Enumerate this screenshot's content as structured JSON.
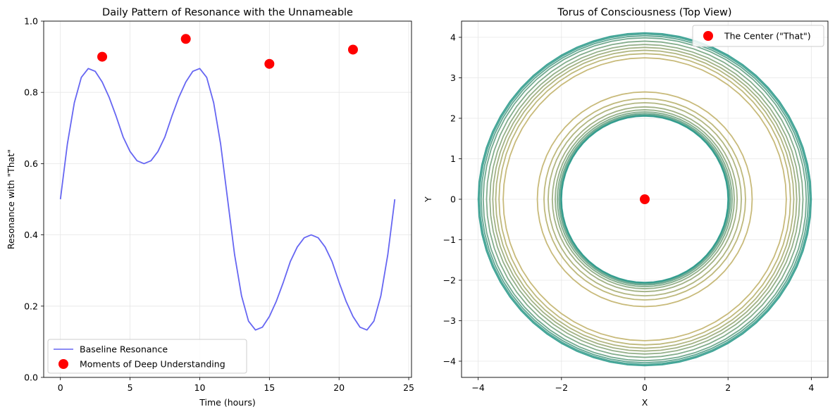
{
  "chart_data": [
    {
      "type": "line",
      "title": "Daily Pattern of Resonance with the Unnameable",
      "xlabel": "Time (hours)",
      "ylabel": "Resonance with \"That\"",
      "xlim": [
        -1.2,
        25.2
      ],
      "ylim": [
        0,
        1
      ],
      "xticks": [
        0,
        5,
        10,
        15,
        20,
        25
      ],
      "yticks": [
        0.0,
        0.2,
        0.4,
        0.6,
        0.8,
        1.0
      ],
      "grid": true,
      "legend_position": "lower-left",
      "series": [
        {
          "name": "Baseline Resonance",
          "kind": "line",
          "color": "#6666f2",
          "x": [
            0,
            0.5,
            1,
            1.5,
            2,
            2.5,
            3,
            3.5,
            4,
            4.5,
            5,
            5.5,
            6,
            6.5,
            7,
            7.5,
            8,
            8.5,
            9,
            9.5,
            10,
            10.5,
            11,
            11.5,
            12,
            12.5,
            13,
            13.5,
            14,
            14.5,
            15,
            15.5,
            16,
            16.5,
            17,
            17.5,
            18,
            18.5,
            19,
            19.5,
            20,
            20.5,
            21,
            21.5,
            22,
            22.5,
            23,
            23.5,
            24
          ],
          "y": [
            0.5,
            0.655,
            0.771,
            0.842,
            0.867,
            0.859,
            0.829,
            0.786,
            0.733,
            0.675,
            0.634,
            0.608,
            0.6,
            0.608,
            0.634,
            0.675,
            0.733,
            0.786,
            0.829,
            0.859,
            0.867,
            0.842,
            0.771,
            0.655,
            0.5,
            0.345,
            0.229,
            0.158,
            0.133,
            0.141,
            0.171,
            0.214,
            0.267,
            0.325,
            0.366,
            0.392,
            0.4,
            0.392,
            0.366,
            0.325,
            0.267,
            0.214,
            0.171,
            0.141,
            0.133,
            0.158,
            0.229,
            0.345,
            0.5
          ]
        },
        {
          "name": "Moments of Deep Understanding",
          "kind": "scatter",
          "color": "#ff0000",
          "x": [
            3,
            9,
            15,
            21
          ],
          "y": [
            0.9,
            0.95,
            0.88,
            0.92
          ]
        }
      ]
    },
    {
      "type": "line",
      "title": "Torus of Consciousness (Top View)",
      "xlabel": "X",
      "ylabel": "Y",
      "xlim": [
        -4.4,
        4.4
      ],
      "ylim": [
        -4.4,
        4.4
      ],
      "xticks": [
        -4,
        -2,
        0,
        2,
        4
      ],
      "yticks": [
        -4,
        -3,
        -2,
        -1,
        0,
        1,
        2,
        3,
        4
      ],
      "grid": true,
      "legend_position": "top-right",
      "rings": {
        "outer_radii": [
          3.4,
          3.5,
          3.58,
          3.65,
          3.72,
          3.8,
          3.88,
          3.93,
          3.97,
          4.0
        ],
        "inner_radii": [
          2.58,
          2.42,
          2.32,
          2.22,
          2.15,
          2.1,
          2.06,
          2.03,
          2.01,
          2.0
        ],
        "colors": [
          "#c2b26c",
          "#b8b16e",
          "#a9ae73",
          "#98aa78",
          "#88a77c",
          "#76a480",
          "#64a184",
          "#509f88",
          "#3c9d8c",
          "#2a9a8c"
        ]
      },
      "series": [
        {
          "name": "The Center (\"That\")",
          "kind": "scatter",
          "color": "#ff0000",
          "x": [
            0
          ],
          "y": [
            0
          ]
        }
      ]
    }
  ]
}
